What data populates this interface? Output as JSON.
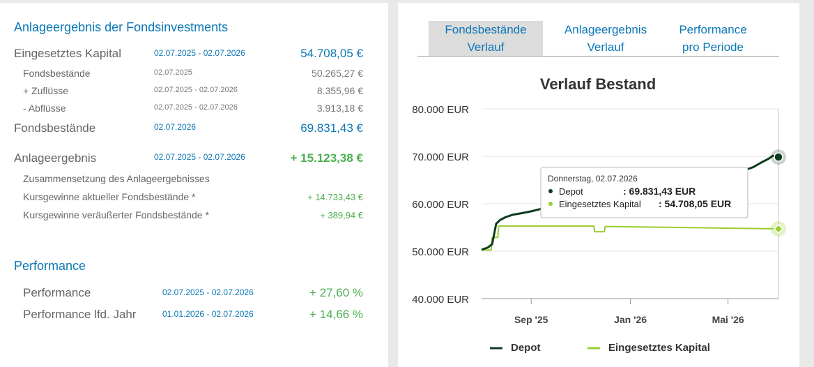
{
  "left": {
    "title": "Anlageergebnis der Fondsinvestments",
    "eingesetztes": {
      "label": "Eingesetztes Kapital",
      "date": "02.07.2025 - 02.07.2026",
      "value": "54.708,05 €"
    },
    "fondsbestaende_start": {
      "label": "Fondsbestände",
      "date": "02.07.2025",
      "value": "50.265,27 €"
    },
    "zufluesse": {
      "label": "+ Zuflüsse",
      "date": "02.07.2025 - 02.07.2026",
      "value": "8.355,96 €"
    },
    "abfluesse": {
      "label": "-  Abflüsse",
      "date": "02.07.2025 - 02.07.2026",
      "value": "3.913,18 €"
    },
    "fondsbestaende": {
      "label": "Fondsbestände",
      "date": "02.07.2026",
      "value": "69.831,43 €"
    },
    "anlageergebnis": {
      "label": "Anlageergebnis",
      "date": "02.07.2025 - 02.07.2026",
      "value": "+ 15.123,38 €"
    },
    "zusammensetzung_label": "Zusammensetzung des Anlageergebnisses",
    "kursgewinne_aktuell": {
      "label": "Kursgewinne aktueller Fondsbestände *",
      "value": "+ 14.733,43 €"
    },
    "kursgewinne_veraeussert": {
      "label": "Kursgewinne veräußerter Fondsbestände *",
      "value": "+ 389,94 €"
    },
    "performance_title": "Performance",
    "performance": {
      "label": "Performance",
      "date": "02.07.2025 - 02.07.2026",
      "value": "+ 27,60 %"
    },
    "performance_jahr": {
      "label": "Performance lfd. Jahr",
      "date": "01.01.2026 - 02.07.2026",
      "value": "+ 14,66 %"
    }
  },
  "tabs": [
    {
      "line1": "Fondsbestände",
      "line2": "Verlauf",
      "active": true
    },
    {
      "line1": "Anlageergebnis",
      "line2": "Verlauf",
      "active": false
    },
    {
      "line1": "Performance",
      "line2": "pro Periode",
      "active": false
    }
  ],
  "tooltip": {
    "date": "Donnerstag, 02.07.2026",
    "depot_label": "Depot",
    "depot_value": ": 69.831,43 EUR",
    "kapital_label": "Eingesetztes Kapital",
    "kapital_value": ": 54.708,05 EUR"
  },
  "colors": {
    "depot": "#0d3b1e",
    "kapital": "#9acd32",
    "accent": "#0b77b5",
    "positive": "#4caf50"
  },
  "chart_data": {
    "type": "line",
    "title": "Verlauf Bestand",
    "y_ticks": [
      "80.000 EUR",
      "70.000 EUR",
      "60.000 EUR",
      "50.000 EUR",
      "40.000 EUR"
    ],
    "y_tick_values": [
      80000,
      70000,
      60000,
      50000,
      40000
    ],
    "ylim": [
      40000,
      80000
    ],
    "x_ticks": [
      "Sep '25",
      "Jan '26",
      "Mai '26"
    ],
    "x_tick_dates": [
      "2025-09-01",
      "2026-01-01",
      "2026-05-01"
    ],
    "xlim": [
      "2025-07-02",
      "2026-07-02"
    ],
    "grid": true,
    "legend": "bottom",
    "series": [
      {
        "name": "Depot",
        "color": "#0d3b1e",
        "x": [
          "2025-07-02",
          "2025-07-10",
          "2025-07-15",
          "2025-07-20",
          "2025-07-25",
          "2025-08-01",
          "2025-08-10",
          "2025-08-20",
          "2025-09-01",
          "2025-09-15",
          "2025-10-01",
          "2025-10-15",
          "2025-11-01",
          "2025-11-15",
          "2025-12-01",
          "2026-01-01",
          "2026-02-01",
          "2026-03-01",
          "2026-04-01",
          "2026-05-01",
          "2026-05-20",
          "2026-06-01",
          "2026-06-10",
          "2026-06-20",
          "2026-06-25",
          "2026-07-02"
        ],
        "values": [
          50300,
          50800,
          51500,
          55800,
          56600,
          57200,
          57700,
          58000,
          58400,
          59000,
          59500,
          60000,
          60500,
          61000,
          61500,
          62500,
          63500,
          64500,
          65500,
          66500,
          67000,
          67700,
          68600,
          69500,
          70100,
          69831.43
        ]
      },
      {
        "name": "Eingesetztes Kapital",
        "color": "#9acd32",
        "x": [
          "2025-07-02",
          "2025-07-14",
          "2025-07-15",
          "2025-07-22",
          "2025-07-23",
          "2025-11-17",
          "2025-11-18",
          "2025-11-30",
          "2025-12-01",
          "2026-03-01",
          "2026-07-02"
        ],
        "values": [
          50265,
          50265,
          52900,
          52900,
          55300,
          55300,
          54100,
          54100,
          55200,
          55000,
          54708.05
        ]
      }
    ]
  }
}
